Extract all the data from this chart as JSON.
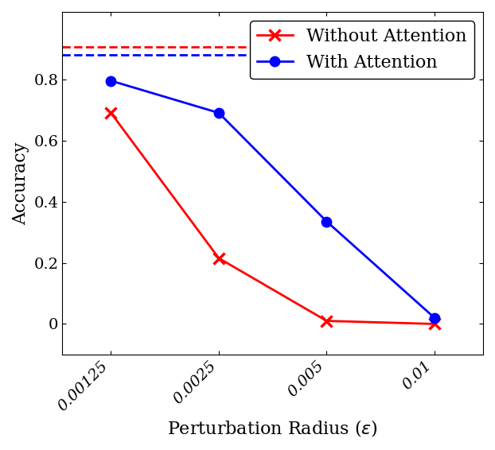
{
  "x_positions": [
    1,
    2,
    3,
    4
  ],
  "x_labels": [
    "0.00125",
    "0.0025",
    "0.005",
    "0.01"
  ],
  "without_attention": [
    0.69,
    0.215,
    0.01,
    0.0
  ],
  "with_attention": [
    0.795,
    0.69,
    0.335,
    0.02
  ],
  "without_attention_baseline": 0.905,
  "with_attention_baseline": 0.88,
  "red_color": "#FF0000",
  "blue_color": "#0000FF",
  "xlabel": "Perturbation Radius ($\\epsilon$)",
  "ylabel": "Accuracy",
  "legend_without": "Without Attention",
  "legend_with": "With Attention",
  "ylim": [
    -0.1,
    1.02
  ],
  "label_fontsize": 16,
  "tick_fontsize": 14,
  "legend_fontsize": 16
}
